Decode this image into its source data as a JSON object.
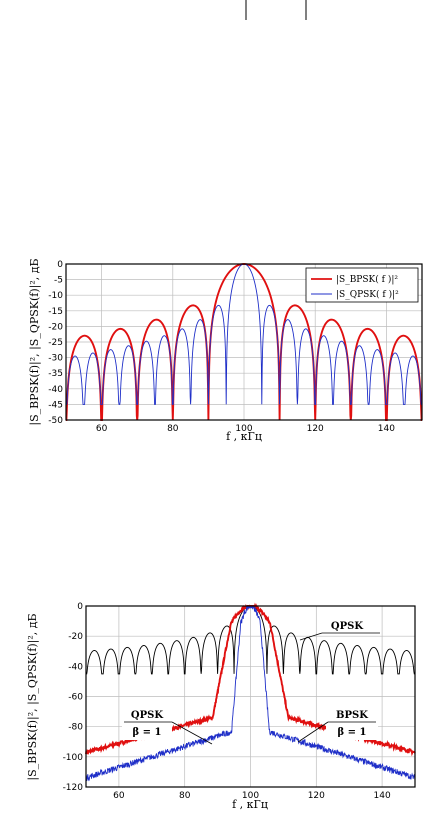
{
  "header_marks": true,
  "chart_data": [
    {
      "type": "line",
      "ylabel": "|S_BPSK(f)|², |S_QPSK(f)|², дБ",
      "xlabel": "f ,  кГц",
      "xlim": [
        50,
        150
      ],
      "ylim": [
        -50,
        0
      ],
      "xticks": [
        "60",
        "80",
        "100",
        "120",
        "140"
      ],
      "yticks": [
        "0",
        "-5",
        "-10",
        "-15",
        "-20",
        "-25",
        "-30",
        "-35",
        "-40",
        "-45",
        "-50"
      ],
      "grid": true,
      "legend_placement": "top-right",
      "legend": [
        "|S_BPSK( f )|²",
        "|S_QPSK( f )|²"
      ],
      "series": [
        {
          "name": "|S_BPSK( f )|²",
          "color": "#e01010",
          "kind": "sinc",
          "center": 100,
          "nullSpacing": 10,
          "floor": -50
        },
        {
          "name": "|S_QPSK( f )|²",
          "color": "#1f2fc8",
          "kind": "sinc",
          "center": 100,
          "nullSpacing": 5,
          "floor": -45
        }
      ]
    },
    {
      "type": "line",
      "ylabel": "|S_BPSK(f)|², |S_QPSK(f)|², дБ",
      "xlabel": "f ,  кГц",
      "xlim": [
        50,
        150
      ],
      "ylim": [
        -120,
        0
      ],
      "xticks": [
        "60",
        "80",
        "100",
        "120",
        "140"
      ],
      "yticks": [
        "0",
        "-20",
        "-40",
        "-60",
        "-80",
        "-100",
        "-120"
      ],
      "grid": true,
      "annotations": [
        {
          "label": "QPSK",
          "sub": ""
        },
        {
          "label": "QPSK",
          "sub": "β = 1"
        },
        {
          "label": "BPSK",
          "sub": "β = 1"
        }
      ],
      "series": [
        {
          "name": "QPSK",
          "color": "#000000",
          "kind": "sinc",
          "center": 100,
          "nullSpacing": 5,
          "floor": -45
        },
        {
          "name": "BPSK β = 1",
          "color": "#e01010",
          "kind": "rc",
          "center": 100,
          "halfWidth": 10,
          "tail": -100
        },
        {
          "name": "QPSK β = 1",
          "color": "#1f2fc8",
          "kind": "rc",
          "center": 100,
          "halfWidth": 5,
          "tail": -115
        }
      ]
    }
  ]
}
